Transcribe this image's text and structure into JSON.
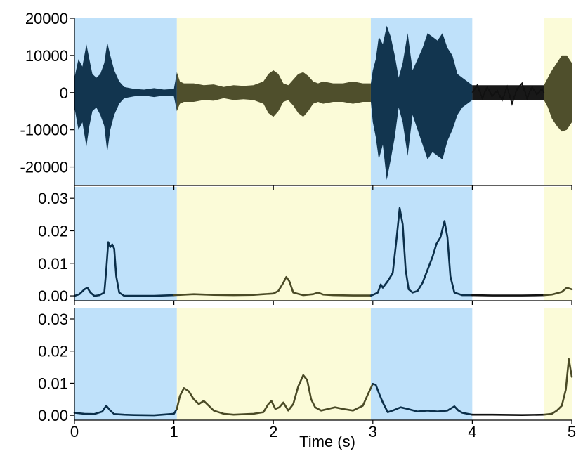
{
  "chart_data": {
    "type": "line",
    "xlabel": "Time (s)",
    "xlim": [
      0,
      5
    ],
    "x_ticks": [
      "0",
      "1",
      "2",
      "3",
      "4",
      "5"
    ],
    "segments": [
      {
        "start": 0.0,
        "end": 1.03,
        "label": "blue",
        "color": "#bfe1fa",
        "trace_color": "#0b2f4a"
      },
      {
        "start": 1.03,
        "end": 2.98,
        "label": "yellow",
        "color": "#fbfbd8",
        "trace_color": "#4a4a26"
      },
      {
        "start": 2.98,
        "end": 4.0,
        "label": "blue",
        "color": "#bfe1fa",
        "trace_color": "#0b2f4a"
      },
      {
        "start": 4.0,
        "end": 4.72,
        "label": "none",
        "color": "#ffffff",
        "trace_color": "#111111"
      },
      {
        "start": 4.72,
        "end": 5.0,
        "label": "yellow",
        "color": "#fbfbd8",
        "trace_color": "#4a4a26"
      }
    ],
    "panels": [
      {
        "id": "waveform",
        "kind": "waveform",
        "ylim": [
          -25000,
          20000
        ],
        "y_ticks": [
          {
            "value": 20000,
            "label": "20000"
          },
          {
            "value": 10000,
            "label": "10000"
          },
          {
            "value": 0,
            "label": "0"
          },
          {
            "value": -10000,
            "label": "-10000"
          },
          {
            "value": -20000,
            "label": "-20000"
          }
        ],
        "envelope": {
          "t": [
            0.0,
            0.04,
            0.08,
            0.12,
            0.15,
            0.18,
            0.22,
            0.26,
            0.3,
            0.33,
            0.36,
            0.4,
            0.45,
            0.5,
            0.6,
            0.7,
            0.8,
            0.9,
            1.0,
            1.03,
            1.06,
            1.1,
            1.2,
            1.3,
            1.4,
            1.5,
            1.6,
            1.7,
            1.8,
            1.9,
            1.95,
            2.0,
            2.05,
            2.1,
            2.15,
            2.2,
            2.25,
            2.3,
            2.35,
            2.4,
            2.45,
            2.5,
            2.6,
            2.7,
            2.8,
            2.9,
            2.98,
            3.0,
            3.03,
            3.06,
            3.1,
            3.14,
            3.18,
            3.22,
            3.26,
            3.3,
            3.35,
            3.4,
            3.45,
            3.5,
            3.55,
            3.6,
            3.65,
            3.7,
            3.75,
            3.8,
            3.85,
            3.9,
            3.95,
            4.0,
            4.72,
            4.76,
            4.8,
            4.85,
            4.9,
            4.95,
            5.0
          ],
          "upper": [
            4000,
            9000,
            7000,
            13000,
            9000,
            5000,
            4000,
            5000,
            8000,
            13500,
            10000,
            6000,
            3000,
            1500,
            1000,
            800,
            1200,
            800,
            1000,
            5500,
            3000,
            2500,
            2500,
            2000,
            2200,
            1500,
            2000,
            1800,
            2000,
            3000,
            5000,
            6000,
            5000,
            2500,
            2000,
            3500,
            5000,
            5500,
            4500,
            3000,
            2500,
            3000,
            2500,
            2500,
            3000,
            2500,
            2500,
            6000,
            9000,
            15000,
            13000,
            18000,
            15000,
            10000,
            4000,
            8000,
            16000,
            6000,
            9000,
            12000,
            16000,
            15000,
            14000,
            16000,
            12000,
            10000,
            5000,
            4000,
            3000,
            2000,
            2000,
            4000,
            6000,
            8000,
            10000,
            10000,
            8000
          ],
          "lower": [
            -4000,
            -10000,
            -8000,
            -14500,
            -9000,
            -5000,
            -4000,
            -6000,
            -9000,
            -16000,
            -10000,
            -6000,
            -3000,
            -1500,
            -1000,
            -800,
            -1200,
            -800,
            -1000,
            -5000,
            -3000,
            -2500,
            -2500,
            -2000,
            -2200,
            -1500,
            -2000,
            -1800,
            -2000,
            -3000,
            -5500,
            -6500,
            -5000,
            -2500,
            -2000,
            -3500,
            -5500,
            -6500,
            -5000,
            -3000,
            -2500,
            -3000,
            -2500,
            -2500,
            -3000,
            -2500,
            -2500,
            -8000,
            -12000,
            -18000,
            -14000,
            -23500,
            -18000,
            -12000,
            -4000,
            -8000,
            -17000,
            -6000,
            -10000,
            -14000,
            -18000,
            -16000,
            -17000,
            -18000,
            -13000,
            -10000,
            -6000,
            -4000,
            -3000,
            -2000,
            -2000,
            -4000,
            -7000,
            -9000,
            -10500,
            -10000,
            -8000
          ]
        },
        "quiet_trace": {
          "t": [
            4.0,
            4.05,
            4.1,
            4.15,
            4.2,
            4.25,
            4.3,
            4.35,
            4.4,
            4.45,
            4.5,
            4.55,
            4.6,
            4.65,
            4.7,
            4.72
          ],
          "y": [
            0,
            2000,
            -1500,
            1500,
            -1000,
            500,
            -2000,
            1500,
            -3000,
            1000,
            2500,
            -1500,
            1500,
            -500,
            1000,
            0
          ]
        }
      },
      {
        "id": "feature-1",
        "kind": "curve",
        "ylim": [
          -0.0015,
          0.0335
        ],
        "y_ticks": [
          {
            "value": 0.03,
            "label": "0.03"
          },
          {
            "value": 0.02,
            "label": "0.02"
          },
          {
            "value": 0.01,
            "label": "0.01"
          },
          {
            "value": 0.0,
            "label": "0.00"
          }
        ],
        "series": [
          {
            "x": [
              0.0,
              0.05,
              0.1,
              0.13,
              0.16,
              0.2,
              0.25,
              0.3,
              0.32,
              0.34,
              0.36,
              0.38,
              0.4,
              0.42,
              0.45,
              0.5,
              0.6,
              0.8,
              1.0,
              1.2,
              1.4,
              1.6,
              1.8,
              1.9,
              2.0,
              2.05,
              2.1,
              2.13,
              2.16,
              2.2,
              2.3,
              2.4,
              2.45,
              2.5,
              2.6,
              2.8,
              2.98,
              3.0,
              3.05,
              3.08,
              3.1,
              3.15,
              3.2,
              3.24,
              3.27,
              3.3,
              3.33,
              3.36,
              3.4,
              3.45,
              3.5,
              3.55,
              3.6,
              3.64,
              3.68,
              3.72,
              3.75,
              3.78,
              3.82,
              3.9,
              4.0,
              4.2,
              4.5,
              4.72,
              4.8,
              4.9,
              4.95,
              5.0
            ],
            "y": [
              0.0,
              0.0005,
              0.002,
              0.0025,
              0.001,
              0.0,
              0.0002,
              0.001,
              0.008,
              0.0165,
              0.015,
              0.0158,
              0.0145,
              0.006,
              0.001,
              0.0,
              0.0,
              0.0,
              0.0002,
              0.0005,
              0.0003,
              0.0002,
              0.0003,
              0.0005,
              0.0007,
              0.0015,
              0.004,
              0.0058,
              0.0045,
              0.001,
              0.0002,
              0.0005,
              0.001,
              0.0004,
              0.0002,
              0.0001,
              0.0001,
              0.0003,
              0.001,
              0.0035,
              0.0025,
              0.0045,
              0.007,
              0.018,
              0.027,
              0.022,
              0.008,
              0.002,
              0.001,
              0.0015,
              0.004,
              0.008,
              0.012,
              0.016,
              0.018,
              0.023,
              0.018,
              0.006,
              0.001,
              0.0002,
              0.0002,
              0.0001,
              0.0001,
              0.0002,
              0.0004,
              0.0012,
              0.0025,
              0.002
            ]
          }
        ]
      },
      {
        "id": "feature-2",
        "kind": "curve",
        "ylim": [
          -0.0015,
          0.0335
        ],
        "y_ticks": [
          {
            "value": 0.03,
            "label": "0.03"
          },
          {
            "value": 0.02,
            "label": "0.02"
          },
          {
            "value": 0.01,
            "label": "0.01"
          },
          {
            "value": 0.0,
            "label": "0.00"
          }
        ],
        "series": [
          {
            "x": [
              0.0,
              0.1,
              0.2,
              0.28,
              0.32,
              0.36,
              0.4,
              0.5,
              0.6,
              0.8,
              1.0,
              1.03,
              1.06,
              1.1,
              1.15,
              1.2,
              1.25,
              1.3,
              1.35,
              1.4,
              1.5,
              1.6,
              1.8,
              1.9,
              1.95,
              1.98,
              2.02,
              2.06,
              2.1,
              2.15,
              2.2,
              2.25,
              2.3,
              2.34,
              2.38,
              2.42,
              2.48,
              2.55,
              2.62,
              2.7,
              2.8,
              2.9,
              2.95,
              3.0,
              3.03,
              3.06,
              3.1,
              3.15,
              3.2,
              3.28,
              3.35,
              3.45,
              3.55,
              3.65,
              3.75,
              3.82,
              3.86,
              3.9,
              4.0,
              4.2,
              4.5,
              4.72,
              4.8,
              4.85,
              4.9,
              4.94,
              4.97,
              5.0
            ],
            "y": [
              0.0008,
              0.0005,
              0.0004,
              0.0012,
              0.003,
              0.0015,
              0.0004,
              0.0002,
              0.0001,
              0.0,
              0.0005,
              0.002,
              0.006,
              0.0085,
              0.0075,
              0.005,
              0.0035,
              0.0045,
              0.003,
              0.0015,
              0.0005,
              0.0002,
              0.0005,
              0.001,
              0.0035,
              0.0045,
              0.002,
              0.0025,
              0.004,
              0.0015,
              0.0035,
              0.009,
              0.0125,
              0.011,
              0.005,
              0.0025,
              0.0015,
              0.002,
              0.0025,
              0.002,
              0.0015,
              0.003,
              0.0065,
              0.0098,
              0.0095,
              0.007,
              0.004,
              0.001,
              0.0015,
              0.0025,
              0.002,
              0.0012,
              0.0015,
              0.0012,
              0.0015,
              0.0028,
              0.0015,
              0.0008,
              0.0002,
              0.0002,
              0.0001,
              0.0002,
              0.0005,
              0.0015,
              0.003,
              0.008,
              0.0175,
              0.012
            ]
          }
        ]
      }
    ]
  }
}
